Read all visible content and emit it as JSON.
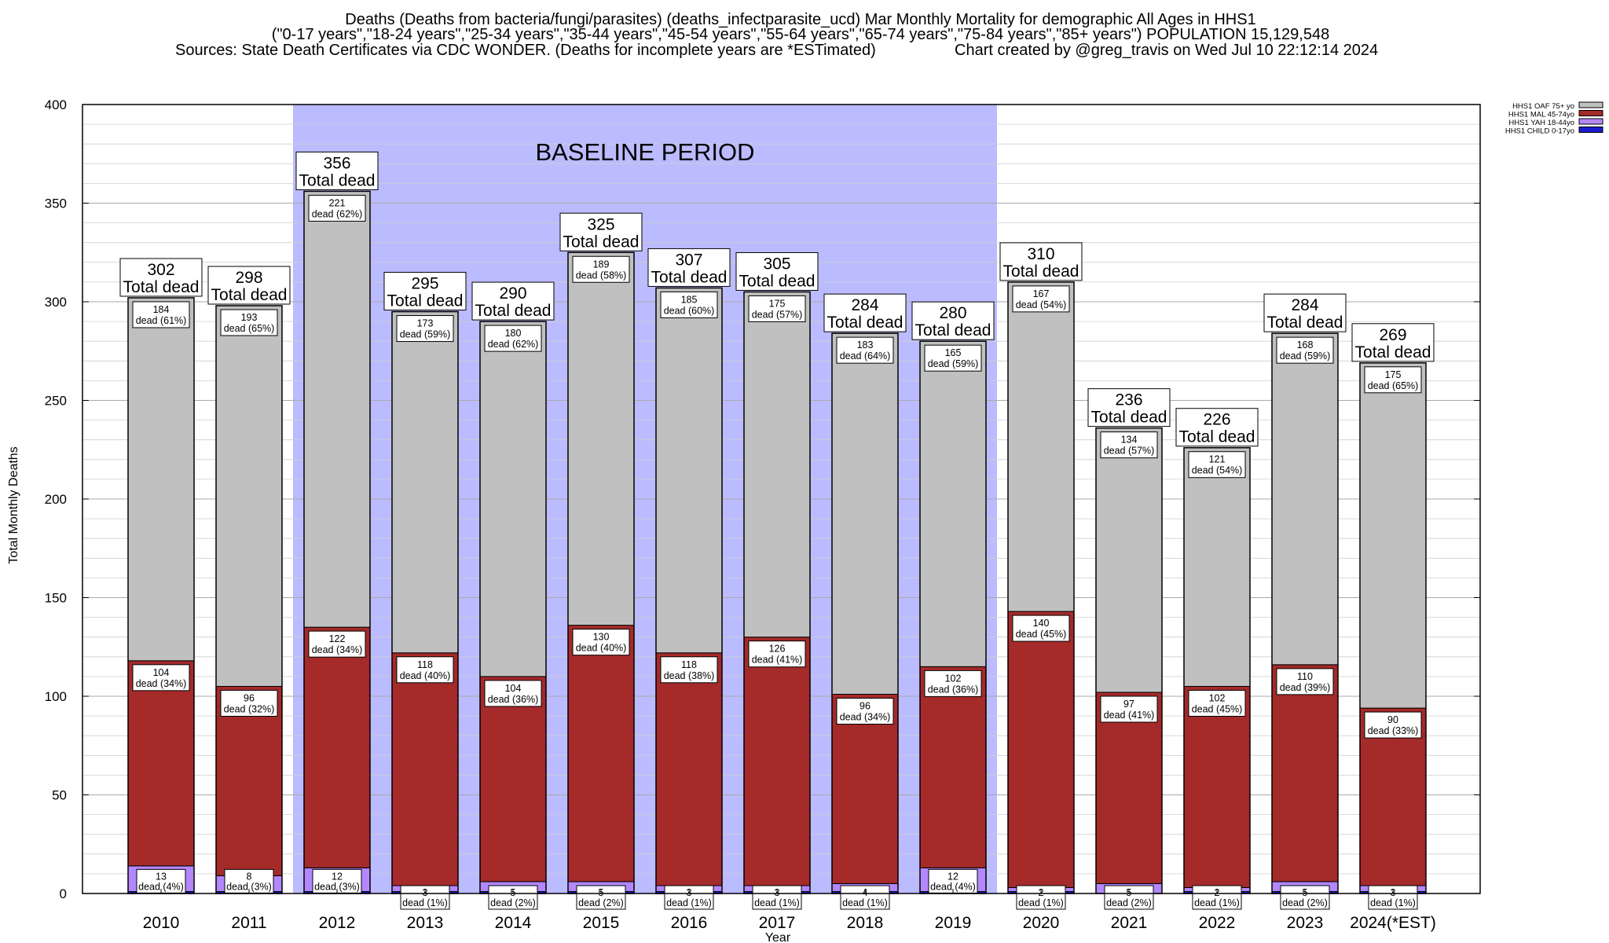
{
  "title_lines": [
    "Deaths (Deaths from bacteria/fungi/parasites) (deaths_infectparasite_ucd) Mar Monthly Mortality for demographic All Ages in HHS1",
    "(\"0-17 years\",\"18-24 years\",\"25-34 years\",\"35-44 years\",\"45-54 years\",\"55-64 years\",\"65-74 years\",\"75-84 years\",\"85+ years\") POPULATION 15,129,548",
    "Sources: State Death Certificates via CDC WONDER. (Deaths for incomplete years are *ESTimated)",
    "Chart created by @greg_travis on Wed Jul 10 22:12:14 2024"
  ],
  "baseline_label": "BASELINE PERIOD",
  "total_suffix": "Total dead",
  "colors": {
    "child": "#1a1acc",
    "yah": "#b388ff",
    "mal": "#a52a2a",
    "oaf": "#c0c0c0",
    "baseline": "#bbbbff"
  },
  "chart_data": {
    "type": "bar",
    "stacked": true,
    "xlabel": "Year",
    "ylabel": "Total Monthly Deaths",
    "ylim": [
      0,
      400
    ],
    "yticks": [
      0,
      50,
      100,
      150,
      200,
      250,
      300,
      350,
      400
    ],
    "grid": true,
    "legend_position": "top-right",
    "baseline_period": [
      "2012",
      "2019"
    ],
    "categories": [
      "2010",
      "2011",
      "2012",
      "2013",
      "2014",
      "2015",
      "2016",
      "2017",
      "2018",
      "2019",
      "2020",
      "2021",
      "2022",
      "2023",
      "2024(*EST)"
    ],
    "totals": [
      302,
      298,
      356,
      295,
      290,
      325,
      307,
      305,
      284,
      280,
      310,
      236,
      226,
      284,
      269
    ],
    "series": [
      {
        "name": "HHS1 CHILD 0-17yo",
        "key": "child",
        "values": [
          1,
          1,
          1,
          1,
          1,
          1,
          1,
          1,
          1,
          1,
          1,
          0,
          1,
          1,
          1
        ],
        "labels": [
          "",
          "",
          "",
          "",
          "",
          "",
          "",
          "",
          "",
          "",
          "",
          "",
          "",
          "",
          ""
        ]
      },
      {
        "name": "HHS1 YAH 18-44yo",
        "key": "yah",
        "values": [
          13,
          8,
          12,
          3,
          5,
          5,
          3,
          3,
          4,
          12,
          2,
          5,
          2,
          5,
          3
        ],
        "labels": [
          "13\ndead (4%)",
          "8\ndead (3%)",
          "12\ndead (3%)",
          "3\ndead (1%)",
          "5\ndead (2%)",
          "5\ndead (2%)",
          "3\ndead (1%)",
          "3\ndead (1%)",
          "4\ndead (1%)",
          "12\ndead (4%)",
          "2\ndead (1%)",
          "5\ndead (2%)",
          "2\ndead (1%)",
          "5\ndead (2%)",
          "3\ndead (1%)"
        ]
      },
      {
        "name": "HHS1 MAL 45-74yo",
        "key": "mal",
        "values": [
          104,
          96,
          122,
          118,
          104,
          130,
          118,
          126,
          96,
          102,
          140,
          97,
          102,
          110,
          90
        ],
        "labels": [
          "104\ndead (34%)",
          "96\ndead (32%)",
          "122\ndead (34%)",
          "118\ndead (40%)",
          "104\ndead (36%)",
          "130\ndead (40%)",
          "118\ndead (38%)",
          "126\ndead (41%)",
          "96\ndead (34%)",
          "102\ndead (36%)",
          "140\ndead (45%)",
          "97\ndead (41%)",
          "102\ndead (45%)",
          "110\ndead (39%)",
          "90\ndead (33%)"
        ]
      },
      {
        "name": "HHS1 OAF 75+ yo",
        "key": "oaf",
        "values": [
          184,
          193,
          221,
          173,
          180,
          189,
          185,
          175,
          183,
          165,
          167,
          134,
          121,
          168,
          175
        ],
        "labels": [
          "184\ndead (61%)",
          "193\ndead (65%)",
          "221\ndead (62%)",
          "173\ndead (59%)",
          "180\ndead (62%)",
          "189\ndead (58%)",
          "185\ndead (60%)",
          "175\ndead (57%)",
          "183\ndead (64%)",
          "165\ndead (59%)",
          "167\ndead (54%)",
          "134\ndead (57%)",
          "121\ndead (54%)",
          "168\ndead (59%)",
          "175\ndead (65%)"
        ]
      }
    ]
  }
}
